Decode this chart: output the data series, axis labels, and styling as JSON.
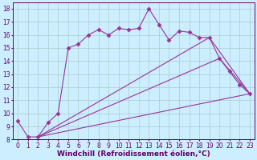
{
  "xlabel": "Windchill (Refroidissement éolien,°C)",
  "background_color": "#cceeff",
  "grid_color": "#aacccc",
  "line_color": "#993399",
  "xlim": [
    -0.5,
    23.5
  ],
  "ylim": [
    8,
    18.5
  ],
  "xticks": [
    0,
    1,
    2,
    3,
    4,
    5,
    6,
    7,
    8,
    9,
    10,
    11,
    12,
    13,
    14,
    15,
    16,
    17,
    18,
    19,
    20,
    21,
    22,
    23
  ],
  "yticks": [
    8,
    9,
    10,
    11,
    12,
    13,
    14,
    15,
    16,
    17,
    18
  ],
  "lines": [
    {
      "x": [
        0,
        1,
        2,
        3,
        4,
        5,
        6,
        7,
        8,
        9,
        10,
        11,
        12,
        13,
        14,
        15,
        16,
        17,
        18,
        19,
        20,
        21,
        22,
        23
      ],
      "y": [
        9.4,
        8.2,
        8.2,
        9.3,
        10.0,
        15.0,
        15.3,
        16.0,
        16.4,
        16.0,
        16.5,
        16.4,
        16.5,
        18.0,
        16.8,
        15.6,
        16.3,
        16.2,
        15.8,
        15.8,
        14.2,
        13.2,
        12.2,
        11.5
      ],
      "marker": "D",
      "markersize": 2.5,
      "linestyle": "-"
    },
    {
      "x": [
        2,
        23
      ],
      "y": [
        8.2,
        11.5
      ],
      "marker": null,
      "markersize": 0,
      "linestyle": "-"
    },
    {
      "x": [
        2,
        20,
        23
      ],
      "y": [
        8.2,
        14.2,
        11.5
      ],
      "marker": null,
      "markersize": 0,
      "linestyle": "-"
    },
    {
      "x": [
        2,
        19,
        23
      ],
      "y": [
        8.2,
        15.8,
        11.5
      ],
      "marker": null,
      "markersize": 0,
      "linestyle": "-"
    }
  ],
  "font_color": "#660066",
  "tick_fontsize": 5.5,
  "xlabel_fontsize": 6.5
}
